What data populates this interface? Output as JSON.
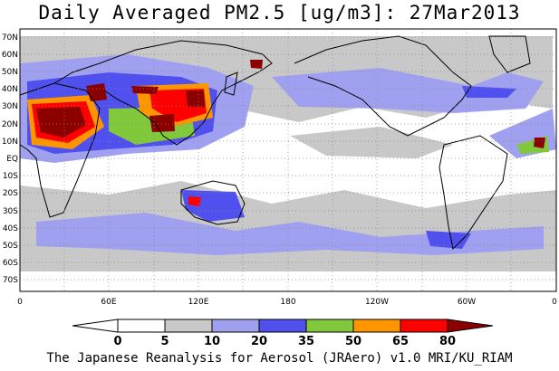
{
  "title": "Daily Averaged PM2.5 [ug/m3]: 27Mar2013",
  "footer": "The Japanese Reanalysis for Aerosol (JRAero) v1.0 MRI/KU_RIAM",
  "map": {
    "lat_ticks": [
      "70N",
      "60N",
      "50N",
      "40N",
      "30N",
      "20N",
      "10N",
      "EQ",
      "10S",
      "20S",
      "30S",
      "40S",
      "50S",
      "60S",
      "70S"
    ],
    "lon_ticks": [
      "0",
      "60E",
      "120E",
      "180",
      "120W",
      "60W",
      "0"
    ],
    "gridlines": true
  },
  "colorbar": {
    "labels": [
      "0",
      "5",
      "10",
      "20",
      "35",
      "50",
      "65",
      "80"
    ],
    "colors": [
      "#ffffff",
      "#c8c8c8",
      "#a0a0f0",
      "#5050ef",
      "#82c83c",
      "#ff9600",
      "#ff0000",
      "#8c0000"
    ]
  },
  "field_colors": {
    "low": "#c8c8c8",
    "light_blue": "#a0a0f0",
    "blue": "#5050ef",
    "green": "#82c83c",
    "orange": "#ff9600",
    "red": "#ff0000",
    "dark_red": "#8c0000"
  }
}
